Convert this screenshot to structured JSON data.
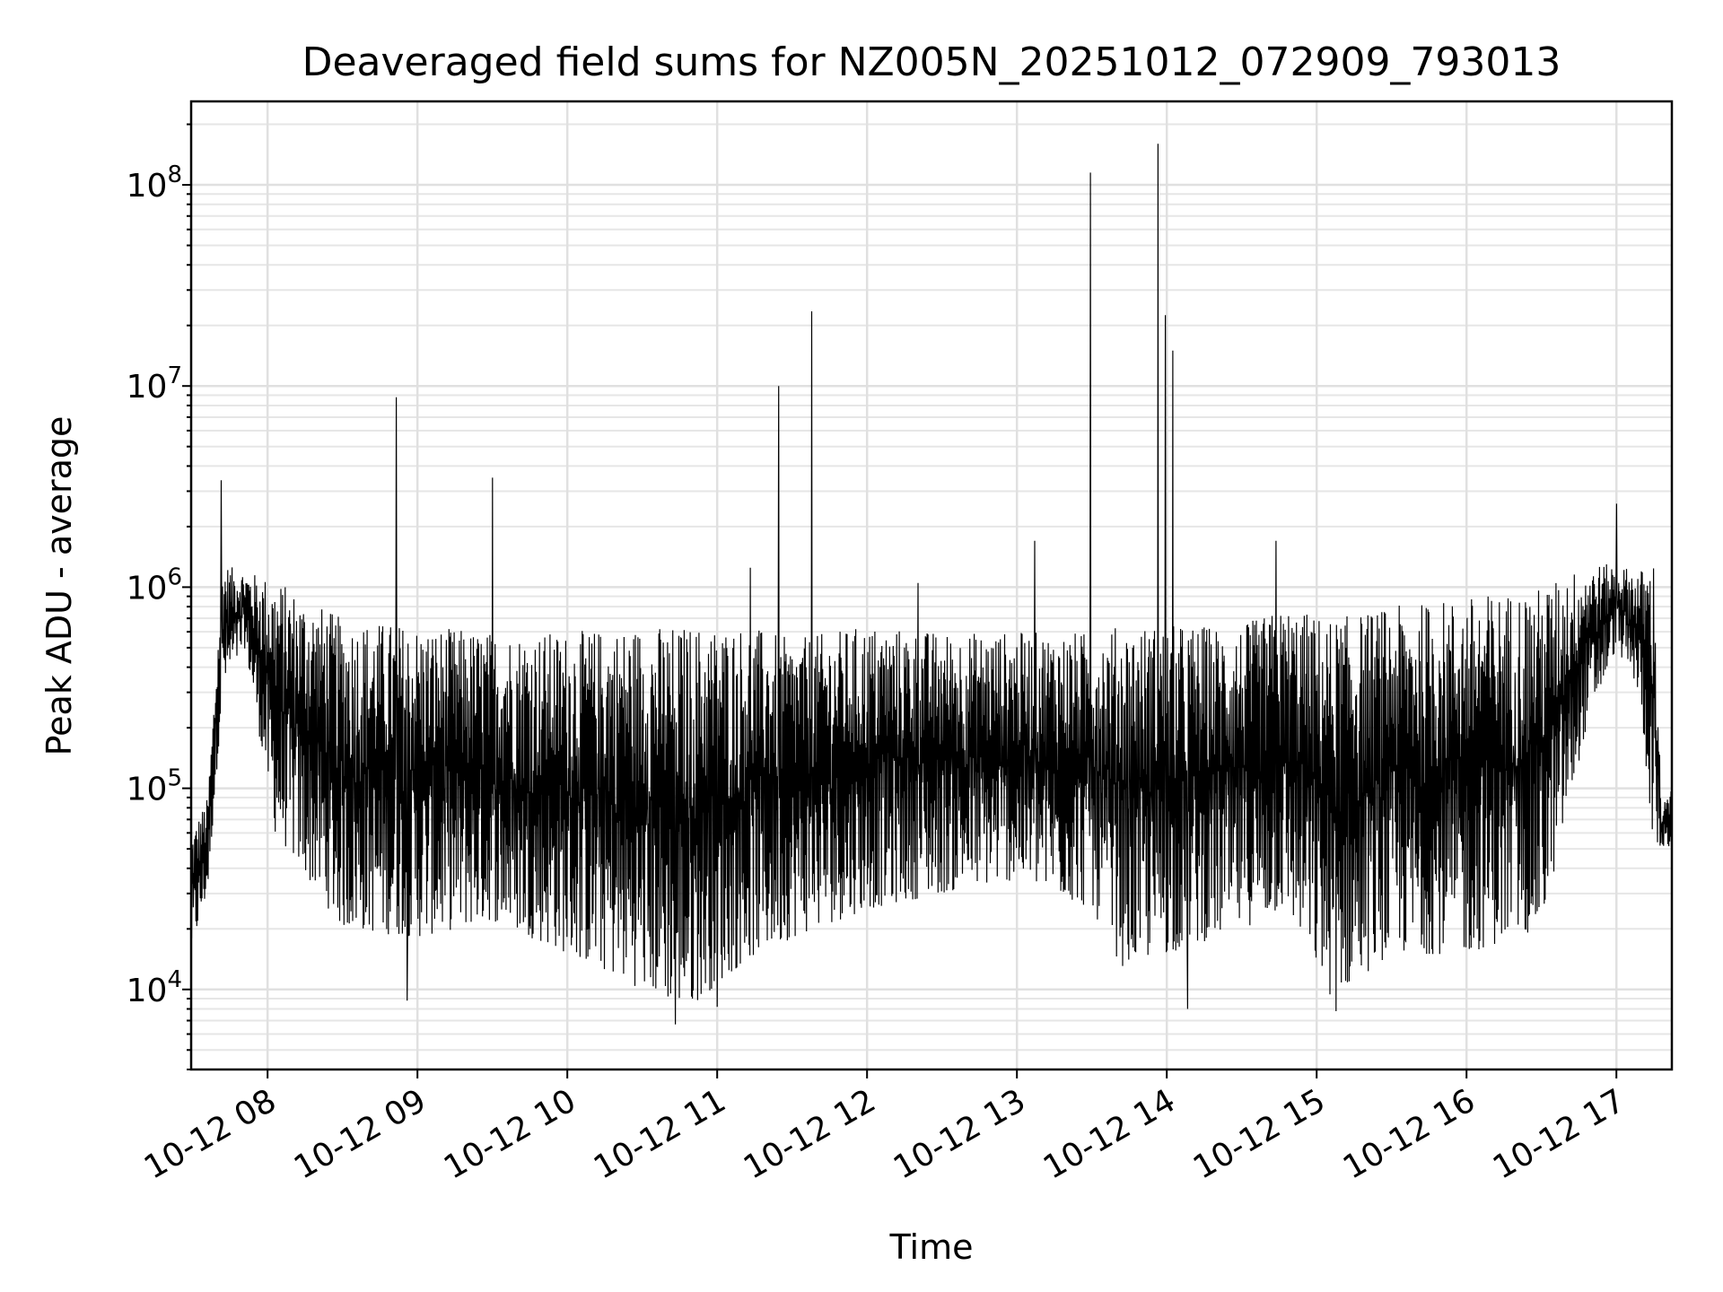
{
  "chart_data": {
    "type": "line",
    "title": "Deaveraged field sums for NZ005N_20251012_072909_793013",
    "xlabel": "Time",
    "ylabel": "Peak ADU - average",
    "yscale": "log",
    "ylim": [
      4000,
      260000000
    ],
    "xlim_hours": [
      7.49,
      17.37
    ],
    "grid": true,
    "x_ticks": [
      {
        "label": "10-12 08",
        "hour": 8
      },
      {
        "label": "10-12 09",
        "hour": 9
      },
      {
        "label": "10-12 10",
        "hour": 10
      },
      {
        "label": "10-12 11",
        "hour": 11
      },
      {
        "label": "10-12 12",
        "hour": 12
      },
      {
        "label": "10-12 13",
        "hour": 13
      },
      {
        "label": "10-12 14",
        "hour": 14
      },
      {
        "label": "10-12 15",
        "hour": 15
      },
      {
        "label": "10-12 16",
        "hour": 16
      },
      {
        "label": "10-12 17",
        "hour": 17
      }
    ],
    "y_ticks": [
      {
        "base": "10",
        "exp": "4",
        "value": 10000
      },
      {
        "base": "10",
        "exp": "5",
        "value": 100000
      },
      {
        "base": "10",
        "exp": "6",
        "value": 1000000
      },
      {
        "base": "10",
        "exp": "7",
        "value": 10000000
      },
      {
        "base": "10",
        "exp": "8",
        "value": 100000000
      }
    ],
    "envelope": [
      {
        "hour": 7.49,
        "low": 15000,
        "high": 60000
      },
      {
        "hour": 7.6,
        "low": 30000,
        "high": 90000
      },
      {
        "hour": 7.7,
        "low": 300000,
        "high": 1300000
      },
      {
        "hour": 7.85,
        "low": 500000,
        "high": 1200000
      },
      {
        "hour": 8.05,
        "low": 60000,
        "high": 1100000
      },
      {
        "hour": 8.5,
        "low": 20000,
        "high": 700000
      },
      {
        "hour": 9.0,
        "low": 18000,
        "high": 650000
      },
      {
        "hour": 9.5,
        "low": 22000,
        "high": 600000
      },
      {
        "hour": 10.0,
        "low": 15000,
        "high": 600000
      },
      {
        "hour": 10.5,
        "low": 10000,
        "high": 650000
      },
      {
        "hour": 10.8,
        "low": 8000,
        "high": 650000
      },
      {
        "hour": 11.2,
        "low": 14000,
        "high": 650000
      },
      {
        "hour": 11.5,
        "low": 18000,
        "high": 550000
      },
      {
        "hour": 12.0,
        "low": 25000,
        "high": 650000
      },
      {
        "hour": 12.5,
        "low": 30000,
        "high": 600000
      },
      {
        "hour": 13.0,
        "low": 35000,
        "high": 600000
      },
      {
        "hour": 13.5,
        "low": 25000,
        "high": 600000
      },
      {
        "hour": 13.7,
        "low": 13000,
        "high": 650000
      },
      {
        "hour": 14.0,
        "low": 15000,
        "high": 650000
      },
      {
        "hour": 14.5,
        "low": 20000,
        "high": 650000
      },
      {
        "hour": 14.8,
        "low": 25000,
        "high": 800000
      },
      {
        "hour": 15.1,
        "low": 9000,
        "high": 700000
      },
      {
        "hour": 15.5,
        "low": 15000,
        "high": 800000
      },
      {
        "hour": 16.0,
        "low": 15000,
        "high": 900000
      },
      {
        "hour": 16.5,
        "low": 20000,
        "high": 1000000
      },
      {
        "hour": 16.8,
        "low": 200000,
        "high": 1300000
      },
      {
        "hour": 17.0,
        "low": 500000,
        "high": 1300000
      },
      {
        "hour": 17.15,
        "low": 300000,
        "high": 1200000
      },
      {
        "hour": 17.25,
        "low": 50000,
        "high": 1400000
      },
      {
        "hour": 17.3,
        "low": 50000,
        "high": 80000
      },
      {
        "hour": 17.37,
        "low": 50000,
        "high": 100000
      }
    ],
    "spikes": [
      {
        "hour": 7.69,
        "value": 3400000
      },
      {
        "hour": 8.86,
        "value": 8800000
      },
      {
        "hour": 9.5,
        "value": 3500000
      },
      {
        "hour": 11.22,
        "value": 1250000
      },
      {
        "hour": 11.41,
        "value": 10000000
      },
      {
        "hour": 11.63,
        "value": 23500000
      },
      {
        "hour": 12.34,
        "value": 1050000
      },
      {
        "hour": 13.12,
        "value": 1700000
      },
      {
        "hour": 13.49,
        "value": 115000000
      },
      {
        "hour": 13.94,
        "value": 160000000
      },
      {
        "hour": 13.99,
        "value": 22500000
      },
      {
        "hour": 14.04,
        "value": 15000000
      },
      {
        "hour": 14.73,
        "value": 1700000
      },
      {
        "hour": 17.0,
        "value": 2600000
      }
    ],
    "dips": [
      {
        "hour": 8.93,
        "value": 8800
      },
      {
        "hour": 10.72,
        "value": 6700
      },
      {
        "hour": 11.0,
        "value": 8200
      },
      {
        "hour": 14.14,
        "value": 8000
      },
      {
        "hour": 15.13,
        "value": 7800
      }
    ]
  }
}
